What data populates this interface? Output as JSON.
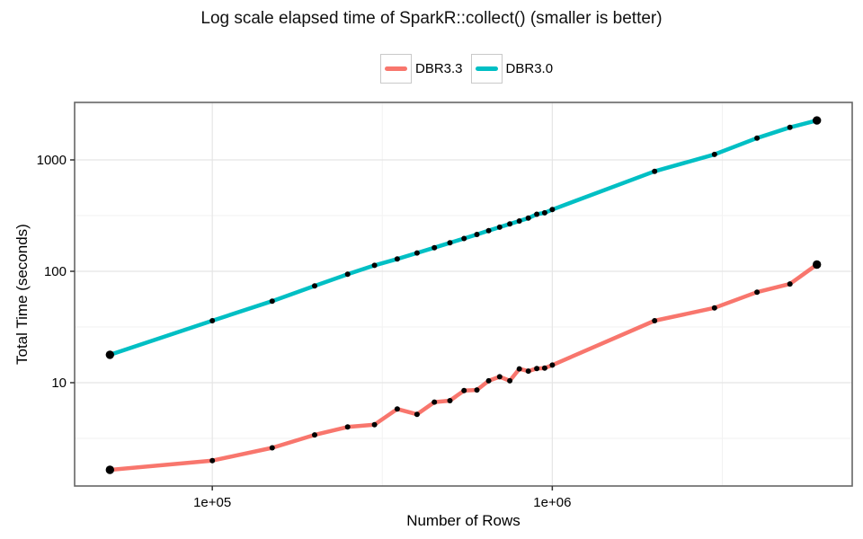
{
  "chart_data": {
    "type": "line",
    "title": "Log scale elapsed time of SparkR::collect() (smaller is better)",
    "xlabel": "Number of Rows",
    "ylabel": "Total Time (seconds)",
    "x_scale": "log10",
    "y_scale": "log10",
    "grid": true,
    "legend_position": "top-center",
    "point_color": "#000000",
    "x": [
      50000,
      100000,
      150000,
      200000,
      250000,
      300000,
      350000,
      400000,
      450000,
      500000,
      550000,
      600000,
      650000,
      700000,
      750000,
      800000,
      850000,
      900000,
      950000,
      1000000,
      2000000,
      3000000,
      4000000,
      5000000,
      6000000
    ],
    "series": [
      {
        "name": "DBR3.3",
        "color": "#F8766D",
        "values": [
          1.65,
          2.0,
          2.6,
          3.4,
          4.0,
          4.2,
          5.8,
          5.2,
          6.7,
          6.9,
          8.5,
          8.6,
          10.4,
          11.3,
          10.4,
          13.3,
          12.7,
          13.4,
          13.5,
          14.4,
          36,
          47,
          65,
          77,
          115
        ]
      },
      {
        "name": "DBR3.0",
        "color": "#00BFC4",
        "values": [
          17.8,
          36,
          54,
          74,
          94,
          113,
          129,
          146,
          163,
          180,
          197,
          214,
          232,
          249,
          266,
          283,
          300,
          325,
          335,
          358,
          790,
          1120,
          1570,
          1960,
          2260
        ]
      }
    ],
    "x_ticks": [
      {
        "value": 100000,
        "label": "1e+05"
      },
      {
        "value": 1000000,
        "label": "1e+06"
      }
    ],
    "y_ticks": [
      {
        "value": 10,
        "label": "10"
      },
      {
        "value": 100,
        "label": "100"
      },
      {
        "value": 1000,
        "label": "1000"
      }
    ],
    "x_minor": [
      316228,
      3162278
    ],
    "y_minor": [
      3.162,
      31.62,
      316.2,
      3162
    ]
  }
}
